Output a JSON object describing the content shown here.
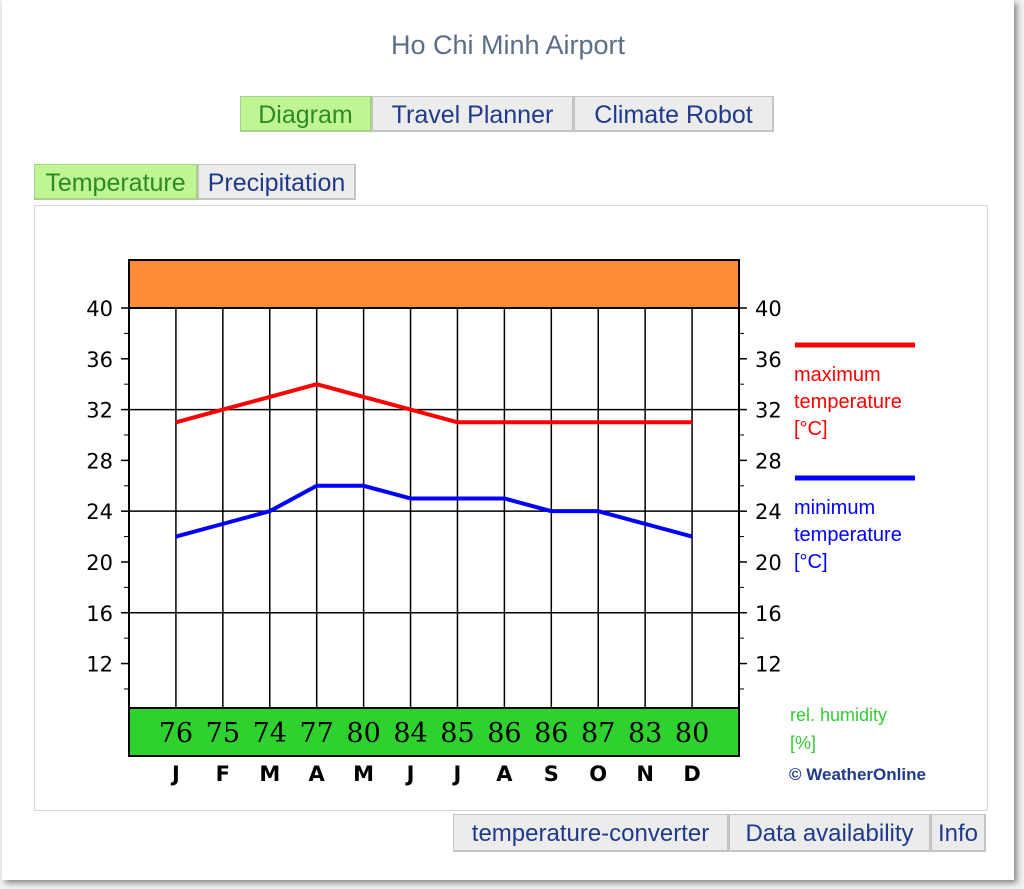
{
  "page": {
    "title": "Ho Chi Minh Airport"
  },
  "nav_tabs": [
    {
      "label": "Diagram",
      "active": true
    },
    {
      "label": "Travel Planner",
      "active": false
    },
    {
      "label": "Climate Robot",
      "active": false
    }
  ],
  "sub_tabs": [
    {
      "label": "Temperature",
      "active": true
    },
    {
      "label": "Precipitation",
      "active": false
    }
  ],
  "footer_links": [
    {
      "label": "temperature-converter"
    },
    {
      "label": "Data availability"
    },
    {
      "label": "Info"
    }
  ],
  "colors": {
    "max_line": "#ff0000",
    "min_line": "#0000ff",
    "top_band": "#ff8c38",
    "humidity_band": "#2fd12f",
    "humidity_label": "#33cc33",
    "grid": "#000000",
    "copyright": "#1f3a8a"
  },
  "chart_data": {
    "type": "line",
    "categories": [
      "J",
      "F",
      "M",
      "A",
      "M",
      "J",
      "J",
      "A",
      "S",
      "O",
      "N",
      "D"
    ],
    "series": [
      {
        "name": "maximum temperature [°C]",
        "values": [
          31,
          32,
          33,
          34,
          33,
          32,
          31,
          31,
          31,
          31,
          31,
          31
        ]
      },
      {
        "name": "minimum temperature [°C]",
        "values": [
          22,
          23,
          24,
          26,
          26,
          25,
          25,
          25,
          24,
          24,
          23,
          22
        ]
      }
    ],
    "y_ticks": [
      "12",
      "16",
      "20",
      "24",
      "28",
      "32",
      "36",
      "40"
    ],
    "ylim": [
      8.5,
      40
    ],
    "y_axis_both_sides": true,
    "grid": true,
    "humidity": {
      "label": "rel. humidity [%]",
      "values": [
        "76",
        "75",
        "74",
        "77",
        "80",
        "84",
        "85",
        "86",
        "86",
        "87",
        "83",
        "80"
      ]
    },
    "legend": {
      "placement": "right",
      "max_label": [
        "maximum",
        "temperature",
        "[°C]"
      ],
      "min_label": [
        "minimum",
        "temperature",
        "[°C]"
      ],
      "humidity_label": [
        "rel. humidity",
        "[%]"
      ]
    },
    "copyright": "© WeatherOnline"
  }
}
